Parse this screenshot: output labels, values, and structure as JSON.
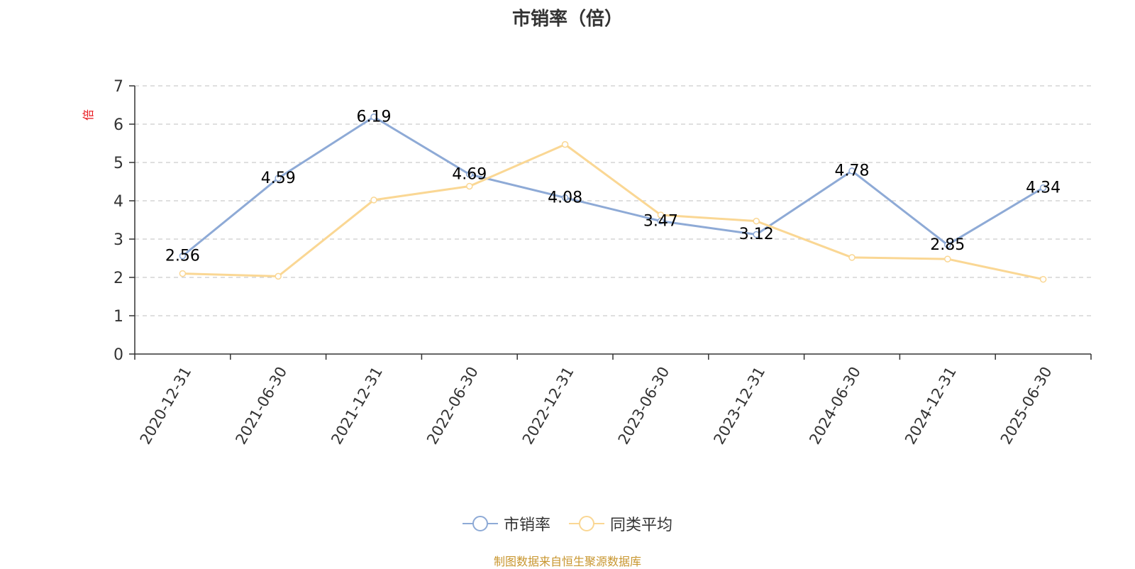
{
  "title": "市销率（倍）",
  "source_note": "制图数据来自恒生聚源数据库",
  "colors": {
    "series_main": "#8eaad6",
    "series_avg": "#fad794",
    "y_unit": "#e8141b",
    "grid": "#cccccc",
    "axis": "#333333",
    "source": "#c8962f"
  },
  "chart_data": {
    "type": "line",
    "title": "市销率（倍）",
    "ylabel": "倍",
    "xlabel": "",
    "ylim": [
      0,
      7
    ],
    "yticks": [
      0,
      1,
      2,
      3,
      4,
      5,
      6,
      7
    ],
    "grid": true,
    "legend_position": "bottom-center",
    "categories": [
      "2020-12-31",
      "2021-06-30",
      "2021-12-31",
      "2022-06-30",
      "2022-12-31",
      "2023-06-30",
      "2023-12-31",
      "2024-06-30",
      "2024-12-31",
      "2025-06-30"
    ],
    "series": [
      {
        "name": "市销率",
        "color": "#8eaad6",
        "values": [
          2.56,
          4.59,
          6.19,
          4.69,
          4.08,
          3.47,
          3.12,
          4.78,
          2.85,
          4.34
        ],
        "labels": [
          "2.56",
          "4.59",
          "6.19",
          "4.69",
          "4.08",
          "3.47",
          "3.12",
          "4.78",
          "2.85",
          "4.34"
        ]
      },
      {
        "name": "同类平均",
        "color": "#fad794",
        "values": [
          2.1,
          2.03,
          4.02,
          4.38,
          5.47,
          3.63,
          3.47,
          2.52,
          2.48,
          1.95
        ]
      }
    ]
  }
}
